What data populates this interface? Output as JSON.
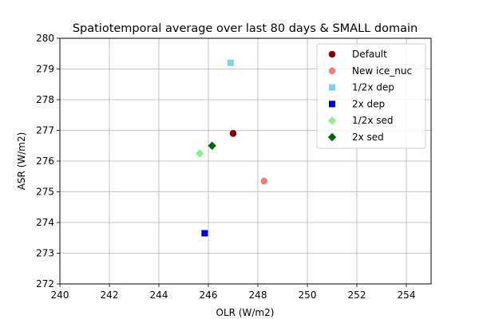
{
  "chart_data": {
    "type": "scatter",
    "title": "Spatiotemporal average over last 80 days & SMALL domain",
    "xlabel": "OLR (W/m2)",
    "ylabel": "ASR (W/m2)",
    "xlim": [
      240,
      255
    ],
    "ylim": [
      272,
      280
    ],
    "xticks": [
      240,
      242,
      244,
      246,
      248,
      250,
      252,
      254
    ],
    "yticks": [
      272,
      273,
      274,
      275,
      276,
      277,
      278,
      279,
      280
    ],
    "grid": true,
    "legend_position": "top-right",
    "series": [
      {
        "name": "Default",
        "marker": "circle",
        "color": "#800000",
        "x": [
          247.0
        ],
        "y": [
          276.9
        ]
      },
      {
        "name": "New ice_nuc",
        "marker": "circle",
        "color": "#f08080",
        "x": [
          248.25
        ],
        "y": [
          275.35
        ]
      },
      {
        "name": "1/2x dep",
        "marker": "square",
        "color": "#87ceeb",
        "x": [
          246.9
        ],
        "y": [
          279.2
        ]
      },
      {
        "name": "2x dep",
        "marker": "square",
        "color": "#0000cd",
        "x": [
          245.85
        ],
        "y": [
          273.65
        ]
      },
      {
        "name": "1/2x sed",
        "marker": "diamond",
        "color": "#90ee90",
        "x": [
          245.65
        ],
        "y": [
          276.25
        ]
      },
      {
        "name": "2x sed",
        "marker": "diamond",
        "color": "#006400",
        "x": [
          246.15
        ],
        "y": [
          276.5
        ]
      }
    ]
  }
}
